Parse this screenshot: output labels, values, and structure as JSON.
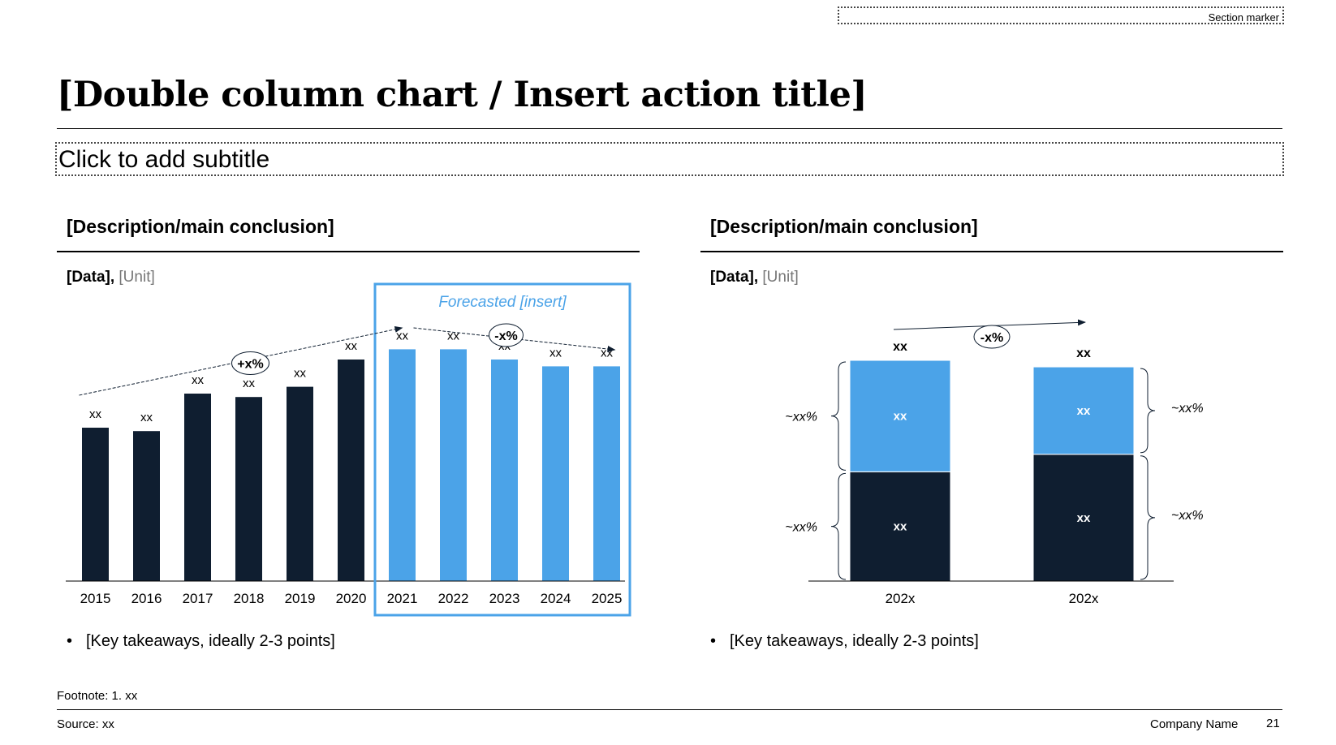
{
  "section_marker": "Section marker",
  "title": "[Double column chart / Insert action title]",
  "subtitle": "Click to add subtitle",
  "left": {
    "description": "[Description/main conclusion]",
    "data_label": "[Data],",
    "unit_label": "[Unit]",
    "takeaway_bullet": "•",
    "takeaway": "[Key takeaways, ideally 2-3 points]"
  },
  "right": {
    "description": "[Description/main conclusion]",
    "data_label": "[Data],",
    "unit_label": "[Unit]",
    "takeaway_bullet": "•",
    "takeaway": "[Key takeaways, ideally 2-3 points]"
  },
  "footnote": "Footnote: 1. xx",
  "source": "Source: xx",
  "company": "Company Name",
  "page_number": "21",
  "colors": {
    "dark": "#0F1E30",
    "light": "#4BA3E8",
    "forecast_border": "#4BA3E8"
  },
  "chart_data": [
    {
      "type": "bar",
      "categories": [
        "2015",
        "2016",
        "2017",
        "2018",
        "2019",
        "2020",
        "2021",
        "2022",
        "2023",
        "2024",
        "2025"
      ],
      "values": [
        45,
        44,
        55,
        54,
        57,
        65,
        68,
        68,
        65,
        63,
        63
      ],
      "data_labels": [
        "xx",
        "xx",
        "xx",
        "xx",
        "xx",
        "xx",
        "xx",
        "xx",
        "xx",
        "xx",
        "xx"
      ],
      "forecast_from_index": 6,
      "forecast_label": "Forecasted [insert]",
      "ylim": [
        0,
        80
      ],
      "annotations": [
        {
          "label": "+x%",
          "from_index": 0,
          "to_index": 6
        },
        {
          "label": "-x%",
          "from_index": 6,
          "to_index": 10
        }
      ]
    },
    {
      "type": "bar",
      "stacked": true,
      "categories": [
        "202x",
        "202x"
      ],
      "series": [
        {
          "values": [
            50,
            58
          ],
          "labels": [
            "xx",
            "xx"
          ],
          "share_labels": [
            "~xx%",
            "~xx%"
          ]
        },
        {
          "values": [
            51,
            40
          ],
          "labels": [
            "xx",
            "xx"
          ],
          "share_labels": [
            "~xx%",
            "~xx%"
          ]
        }
      ],
      "total_labels": [
        "xx",
        "xx"
      ],
      "ylim": [
        0,
        101
      ],
      "annotation": {
        "label": "-x%"
      }
    }
  ]
}
